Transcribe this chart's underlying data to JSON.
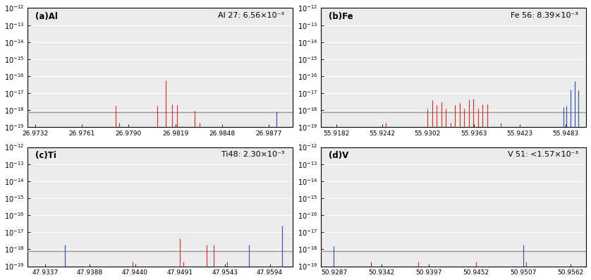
{
  "panels": [
    {
      "label": "(a)Al",
      "annotation": "Al 27: 6.56×10⁻³",
      "xlim": [
        26.9727,
        26.9892
      ],
      "xticks": [
        26.9732,
        26.9761,
        26.979,
        26.9819,
        26.9848,
        26.9877
      ],
      "xticklabels": [
        "26.9732",
        "26.9761",
        "26.9790",
        "26.9819",
        "26.9848",
        "26.9877"
      ],
      "red_lines": [
        [
          26.9782,
          1.8e-18
        ],
        [
          26.9784,
          1.9e-19
        ],
        [
          26.9808,
          1.8e-18
        ],
        [
          26.9813,
          5.5e-17
        ],
        [
          26.9817,
          2.2e-18
        ],
        [
          26.982,
          2e-18
        ],
        [
          26.9831,
          9e-19
        ],
        [
          26.9834,
          1.9e-19
        ]
      ],
      "blue_lines": [
        [
          26.9882,
          8.5e-19
        ]
      ],
      "hline": 8e-19
    },
    {
      "label": "(b)Fe",
      "annotation": "Fe 56: 8.39×10⁻³",
      "xlim": [
        55.9162,
        55.951
      ],
      "xticks": [
        55.9182,
        55.9242,
        55.9302,
        55.9363,
        55.9423,
        55.9483
      ],
      "xticklabels": [
        "55.9182",
        "55.9242",
        "55.9302",
        "55.9363",
        "55.9423",
        "55.9483"
      ],
      "red_lines": [
        [
          55.9247,
          1.9e-19
        ],
        [
          55.9302,
          1.3e-18
        ],
        [
          55.9308,
          3.8e-18
        ],
        [
          55.9314,
          2e-18
        ],
        [
          55.932,
          3e-18
        ],
        [
          55.9326,
          1.3e-18
        ],
        [
          55.9332,
          1.9e-19
        ],
        [
          55.9338,
          2e-18
        ],
        [
          55.9344,
          2.8e-18
        ],
        [
          55.935,
          1.2e-18
        ],
        [
          55.9356,
          4.5e-18
        ],
        [
          55.9362,
          4.8e-18
        ],
        [
          55.9368,
          1.2e-18
        ],
        [
          55.9374,
          2.2e-18
        ],
        [
          55.938,
          2.3e-18
        ],
        [
          55.9398,
          1.9e-19
        ]
      ],
      "blue_lines": [
        [
          55.948,
          1.5e-18
        ],
        [
          55.9484,
          1.8e-18
        ],
        [
          55.949,
          1.7e-17
        ],
        [
          55.9495,
          5e-17
        ],
        [
          55.95,
          1.5e-17
        ]
      ],
      "hline": 8e-19
    },
    {
      "label": "(c)Ti",
      "annotation": "Ti48: 2.30×10⁻³",
      "xlim": [
        47.9317,
        47.962
      ],
      "xticks": [
        47.9337,
        47.9388,
        47.944,
        47.9491,
        47.9543,
        47.9594
      ],
      "xticklabels": [
        "47.9337",
        "47.9388",
        "47.9440",
        "47.9491",
        "47.9543",
        "47.9594"
      ],
      "red_lines": [
        [
          47.9437,
          1.9e-19
        ],
        [
          47.9491,
          4.5e-18
        ],
        [
          47.9495,
          1.9e-19
        ],
        [
          47.9522,
          1.8e-18
        ],
        [
          47.953,
          1.8e-18
        ],
        [
          47.9545,
          1.9e-19
        ]
      ],
      "blue_lines": [
        [
          47.936,
          1.8e-18
        ],
        [
          47.957,
          1.8e-18
        ],
        [
          47.9608,
          2.5e-17
        ]
      ],
      "hline": 8e-19
    },
    {
      "label": "(d)V",
      "annotation": "V 51: <1.57×10⁻³",
      "xlim": [
        50.9272,
        50.958
      ],
      "xticks": [
        50.9287,
        50.9342,
        50.9397,
        50.9452,
        50.9507,
        50.9562
      ],
      "xticklabels": [
        "50.9287",
        "50.9342",
        "50.9397",
        "50.9452",
        "50.9507",
        "50.9562"
      ],
      "red_lines": [
        [
          50.933,
          1.9e-19
        ],
        [
          50.9385,
          1.9e-19
        ],
        [
          50.9452,
          1.9e-19
        ],
        [
          50.951,
          1.9e-19
        ]
      ],
      "blue_lines": [
        [
          50.9287,
          1.5e-18
        ],
        [
          50.9507,
          1.8e-18
        ]
      ],
      "hline": 8e-19
    }
  ],
  "ylim": [
    1e-19,
    1e-12
  ],
  "yticks": [
    1e-19,
    1e-18,
    1e-17,
    1e-16,
    1e-15,
    1e-14,
    1e-13,
    1e-12
  ],
  "red_color": "#cc3333",
  "blue_color": "#3355aa",
  "hline_color": "#999999",
  "bg_color": "#ebebeb",
  "grid_color": "#ffffff",
  "fig_bg": "#ffffff"
}
